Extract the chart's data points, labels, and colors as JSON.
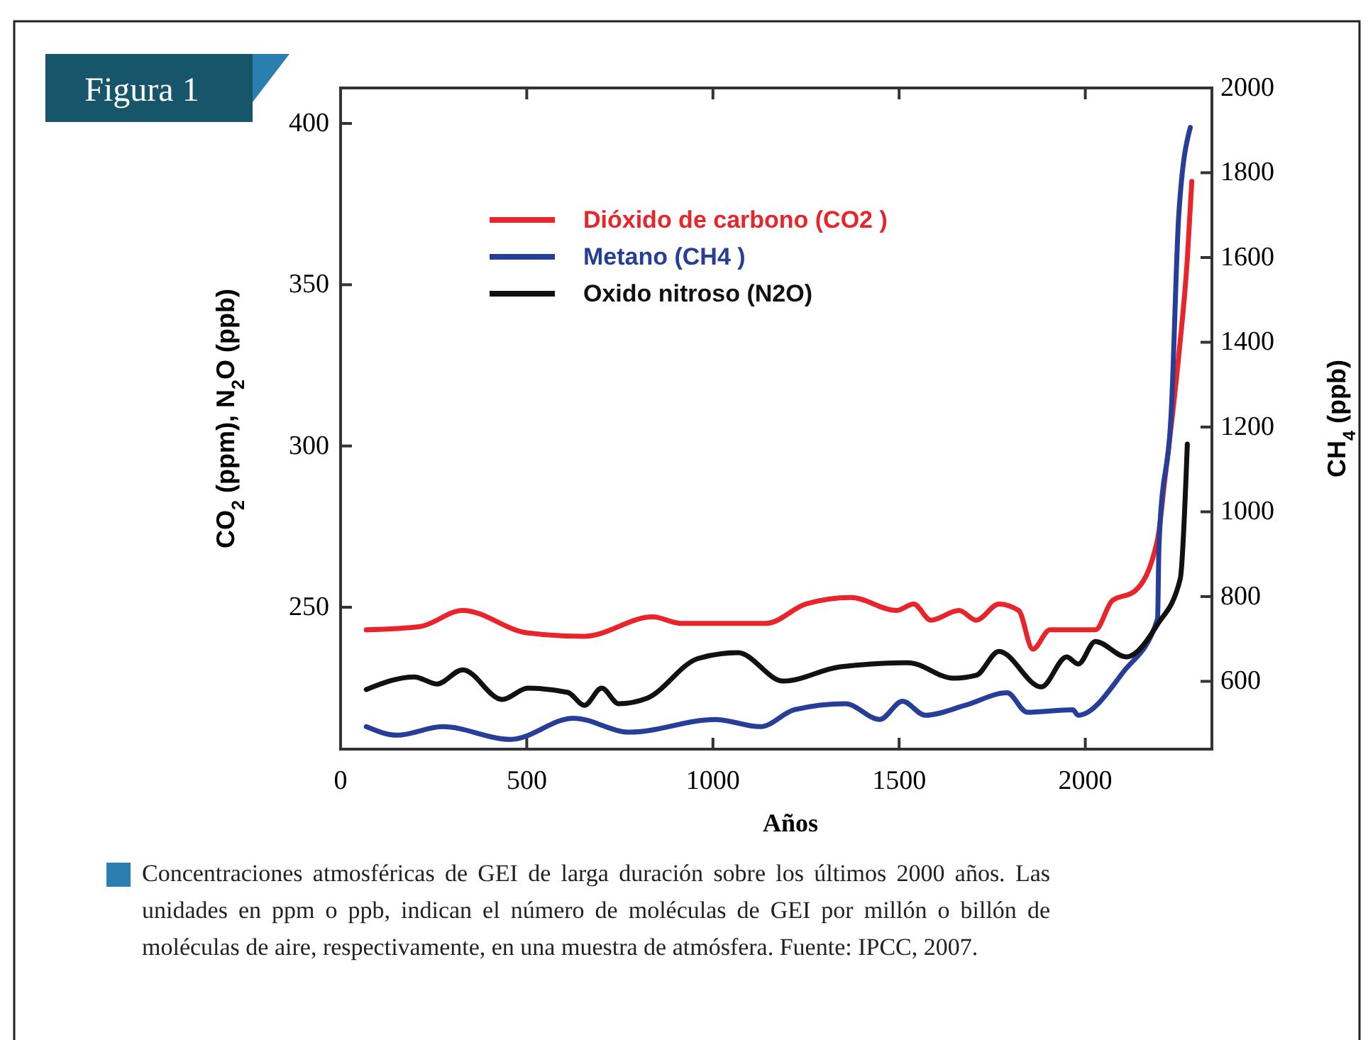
{
  "chart_data": {
    "type": "line",
    "title": "Figura 1",
    "xlabel": "Años",
    "ylabel": "CO$_{2}$ (ppm), N$_{2}$O (ppb)",
    "y2label": "CH$_{4}$ (ppb)",
    "xlim": [
      0,
      2340
    ],
    "xticks": [
      0,
      500,
      1000,
      1500,
      2000
    ],
    "ylim": [
      206,
      411
    ],
    "yticks": [
      250,
      300,
      350,
      400
    ],
    "y2lim": [
      440,
      2000
    ],
    "y2ticks": [
      600,
      800,
      1000,
      1200,
      1400,
      1600,
      1800,
      2000
    ],
    "legend": "top left",
    "grid": false,
    "series": [
      {
        "name": "Dióxido de carbono (CO2 )",
        "color": "#e8252b",
        "x": [
          69,
          213,
          328,
          503,
          655,
          838,
          914,
          1143,
          1250,
          1371,
          1493,
          1539,
          1585,
          1661,
          1707,
          1768,
          1821,
          1859,
          1905,
          2027,
          2072,
          2133,
          2194,
          2213,
          2251,
          2274,
          2286
        ],
        "values": [
          243,
          244,
          249,
          242,
          241,
          247,
          245,
          245,
          251,
          253,
          249,
          251,
          246,
          249,
          246,
          251,
          249,
          237,
          243,
          243,
          252,
          255,
          271,
          289,
          328,
          358,
          382
        ]
      },
      {
        "name": "Metano (CH4 )",
        "color": "#263e97",
        "axis": "y2",
        "x": [
          69,
          152,
          274,
          457,
          625,
          777,
          1006,
          1128,
          1219,
          1356,
          1448,
          1509,
          1570,
          1676,
          1790,
          1844,
          1966,
          1981,
          2103,
          2194,
          2198,
          2232,
          2251,
          2282
        ],
        "values": [
          493,
          473,
          493,
          463,
          513,
          480,
          510,
          493,
          533,
          547,
          510,
          553,
          520,
          543,
          573,
          527,
          533,
          520,
          623,
          747,
          923,
          1257,
          1700,
          1907
        ]
      },
      {
        "name": "Oxido nitroso (N2O)",
        "color": "#111111",
        "x": [
          69,
          198,
          259,
          328,
          434,
          503,
          610,
          655,
          701,
          747,
          823,
          960,
          1067,
          1189,
          1341,
          1524,
          1646,
          1707,
          1768,
          1882,
          1950,
          1981,
          2027,
          2110,
          2194,
          2255,
          2274
        ],
        "values": [
          224.5,
          228.4,
          226.2,
          230.6,
          221.4,
          224.9,
          223.6,
          219.6,
          224.9,
          220.1,
          221.8,
          234.1,
          235.9,
          227.1,
          231.5,
          232.8,
          228,
          228.9,
          236.3,
          225.3,
          234.6,
          232.4,
          239.4,
          234.6,
          244.7,
          258.8,
          300.6
        ]
      }
    ],
    "annotations": [
      "Concentraciones atmosféricas de GEI de larga duración sobre los últimos 2000 años. Las unidades en ppm o ppb, indican el número de moléculas de GEI por millón o billón de moléculas de aire, respectivamente, en una muestra de atmósfera. Fuente: IPCC, 2007."
    ]
  }
}
